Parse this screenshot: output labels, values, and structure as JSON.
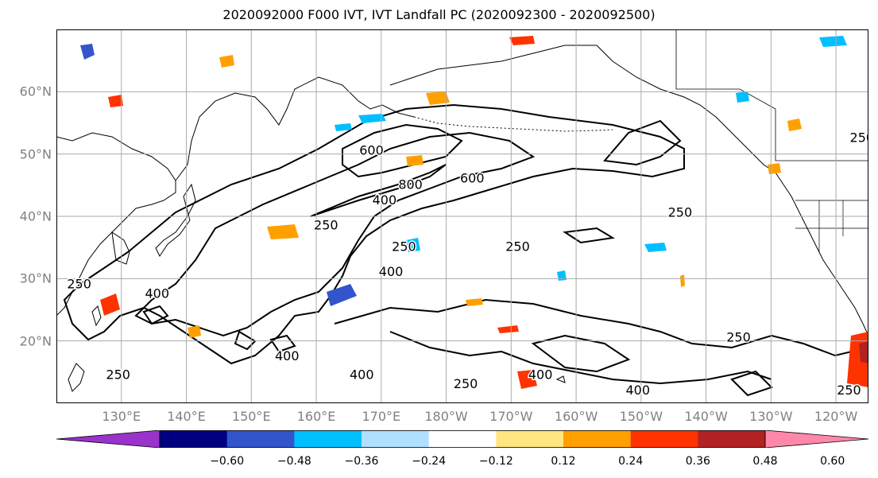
{
  "title": "2020092000 F000 IVT, IVT Landfall PC (2020092300 - 2020092500)",
  "lat_axis": {
    "labels": [
      {
        "lat": 60,
        "text": "60°N"
      },
      {
        "lat": 50,
        "text": "50°N"
      },
      {
        "lat": 40,
        "text": "40°N"
      },
      {
        "lat": 30,
        "text": "30°N"
      },
      {
        "lat": 20,
        "text": "20°N"
      }
    ],
    "range": [
      10,
      70
    ]
  },
  "lon_axis": {
    "labels": [
      {
        "lon": 130,
        "text": "130°E"
      },
      {
        "lon": 140,
        "text": "140°E"
      },
      {
        "lon": 150,
        "text": "150°E"
      },
      {
        "lon": 160,
        "text": "160°E"
      },
      {
        "lon": 170,
        "text": "170°E"
      },
      {
        "lon": 180,
        "text": "180°W"
      },
      {
        "lon": 190,
        "text": "170°W"
      },
      {
        "lon": 200,
        "text": "160°W"
      },
      {
        "lon": 210,
        "text": "150°W"
      },
      {
        "lon": 220,
        "text": "140°W"
      },
      {
        "lon": 230,
        "text": "130°W"
      },
      {
        "lon": 240,
        "text": "120°W"
      }
    ],
    "range": [
      120,
      245
    ]
  },
  "colorbar": {
    "colors": [
      "#9933cc",
      "#000080",
      "#3355cc",
      "#00bfff",
      "#b0e0ff",
      "#ffffff",
      "#ffe680",
      "#ffa000",
      "#ff3300",
      "#b22222",
      "#ff88aa"
    ],
    "bounds": [
      -0.6,
      -0.48,
      -0.36,
      -0.24,
      -0.12,
      0.12,
      0.24,
      0.36,
      0.48,
      0.6
    ],
    "labels": [
      "−0.60",
      "−0.48",
      "−0.36",
      "−0.24",
      "−0.12",
      "0.12",
      "0.24",
      "0.36",
      "0.48",
      "0.60"
    ]
  },
  "contour_labels": [
    {
      "text": "600",
      "lon": 168.5,
      "lat": 50.5
    },
    {
      "text": "800",
      "lon": 174.5,
      "lat": 45
    },
    {
      "text": "600",
      "lon": 184,
      "lat": 46
    },
    {
      "text": "400",
      "lon": 170.5,
      "lat": 42.5
    },
    {
      "text": "250",
      "lon": 161.5,
      "lat": 38.5
    },
    {
      "text": "250",
      "lon": 173.5,
      "lat": 35
    },
    {
      "text": "400",
      "lon": 171.5,
      "lat": 31
    },
    {
      "text": "250",
      "lon": 191,
      "lat": 35
    },
    {
      "text": "250",
      "lon": 216,
      "lat": 40.5
    },
    {
      "text": "400",
      "lon": 135.5,
      "lat": 27.5
    },
    {
      "text": "250",
      "lon": 123.5,
      "lat": 29
    },
    {
      "text": "400",
      "lon": 155.5,
      "lat": 17.5
    },
    {
      "text": "250",
      "lon": 129.5,
      "lat": 14.5
    },
    {
      "text": "400",
      "lon": 167,
      "lat": 14.5
    },
    {
      "text": "250",
      "lon": 183,
      "lat": 13
    },
    {
      "text": "400",
      "lon": 194.5,
      "lat": 14.5
    },
    {
      "text": "400",
      "lon": 209.5,
      "lat": 12
    },
    {
      "text": "250",
      "lon": 225,
      "lat": 20.5
    },
    {
      "text": "250",
      "lon": 244,
      "lat": 52.5
    },
    {
      "text": "250",
      "lon": 242,
      "lat": 12
    }
  ]
}
